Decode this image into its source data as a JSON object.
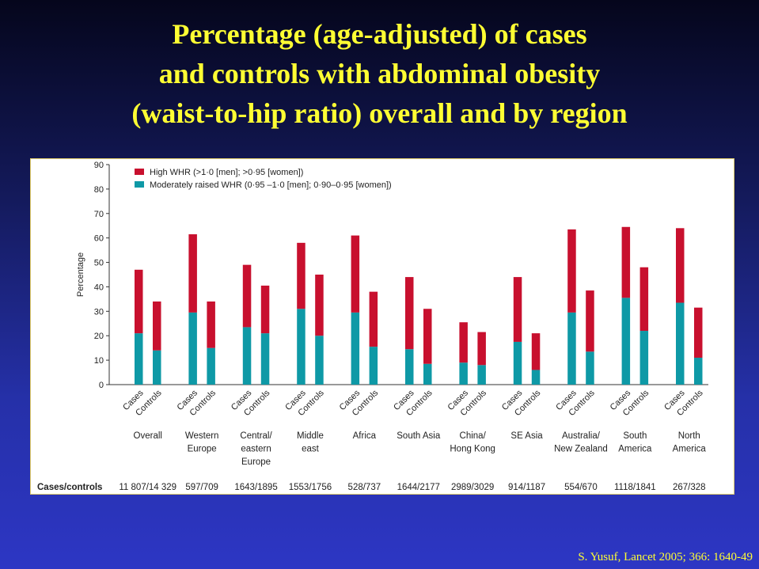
{
  "slide": {
    "title_lines": [
      "Percentage (age-adjusted) of cases",
      "and controls with abdominal obesity",
      "(waist-to-hip ratio) overall and by region"
    ],
    "citation": "S. Yusuf, Lancet 2005; 366: 1640-49",
    "title_color": "#ffff33"
  },
  "chart_data": {
    "type": "bar",
    "stacked": true,
    "ylabel": "Percentage",
    "ylim": [
      0,
      90
    ],
    "yticks": [
      0,
      10,
      20,
      30,
      40,
      50,
      60,
      70,
      80,
      90
    ],
    "legend_position": "top-left",
    "bar_labels": [
      "Cases",
      "Controls"
    ],
    "groups_label": "Cases/controls",
    "categories": [
      {
        "lines": [
          "Overall"
        ],
        "counts": "11 807/14 329"
      },
      {
        "lines": [
          "Western",
          "Europe"
        ],
        "counts": "597/709"
      },
      {
        "lines": [
          "Central/",
          "eastern",
          "Europe"
        ],
        "counts": "1643/1895"
      },
      {
        "lines": [
          "Middle",
          "east"
        ],
        "counts": "1553/1756"
      },
      {
        "lines": [
          "Africa"
        ],
        "counts": "528/737"
      },
      {
        "lines": [
          "South Asia"
        ],
        "counts": "1644/2177"
      },
      {
        "lines": [
          "China/",
          "Hong Kong"
        ],
        "counts": "2989/3029"
      },
      {
        "lines": [
          "SE Asia"
        ],
        "counts": "914/1187"
      },
      {
        "lines": [
          "Australia/",
          "New Zealand"
        ],
        "counts": "554/670"
      },
      {
        "lines": [
          "South",
          "America"
        ],
        "counts": "1118/1841"
      },
      {
        "lines": [
          "North",
          "America"
        ],
        "counts": "267/328"
      }
    ],
    "series": [
      {
        "name": "Moderately raised WHR (0·95 –1·0 [men]; 0·90–0·95 [women])",
        "color": "#0e99a6",
        "cases": [
          21,
          29.5,
          23.5,
          31,
          29.5,
          14.5,
          9,
          17.5,
          29.5,
          35.5,
          33.5
        ],
        "controls": [
          14,
          15,
          21,
          20,
          15.5,
          8.5,
          8,
          6,
          13.5,
          22,
          11
        ]
      },
      {
        "name": "High WHR (>1·0 [men]; >0·95 [women])",
        "color": "#c8102e",
        "cases": [
          26,
          32,
          25.5,
          27,
          31.5,
          29.5,
          16.5,
          26.5,
          34,
          29,
          30.5
        ],
        "controls": [
          20,
          19,
          19.5,
          25,
          22.5,
          22.5,
          13.5,
          15,
          25,
          26,
          20.5
        ]
      }
    ]
  }
}
